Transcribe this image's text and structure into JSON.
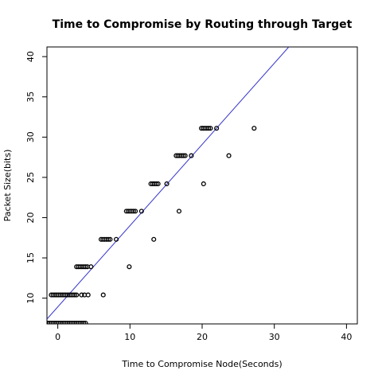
{
  "chart_data": {
    "type": "scatter",
    "title": "Time to Compromise by Routing through Target",
    "xlabel": "Time to Compromise Node(Seconds)",
    "ylabel": "Packet Size(bits)",
    "xlim": [
      -1.5,
      41.5
    ],
    "ylim": [
      6.8,
      41.2
    ],
    "xticks": [
      "0",
      "10",
      "20",
      "30",
      "40"
    ],
    "xtick_values": [
      0,
      10,
      20,
      30,
      40
    ],
    "yticks": [
      "10",
      "15",
      "20",
      "25",
      "30",
      "35",
      "40"
    ],
    "ytick_values": [
      10,
      15,
      20,
      25,
      30,
      35,
      40
    ],
    "grid": false,
    "point_color": "#000000",
    "line_color": "#3333cc",
    "series": [
      {
        "style": "points",
        "clusters": [
          {
            "y": 6.9,
            "x_from": -1.4,
            "x_to": 4.0,
            "step": 0.25
          },
          {
            "y": 10.4,
            "x_from": -0.9,
            "x_to": 2.6,
            "step": 0.25
          },
          {
            "y": 13.9,
            "x_from": 2.6,
            "x_to": 4.1,
            "step": 0.25
          },
          {
            "y": 17.3,
            "x_from": 6.0,
            "x_to": 7.4,
            "step": 0.25
          },
          {
            "y": 20.8,
            "x_from": 9.5,
            "x_to": 10.9,
            "step": 0.25
          },
          {
            "y": 24.2,
            "x_from": 12.9,
            "x_to": 14.1,
            "step": 0.25
          },
          {
            "y": 27.7,
            "x_from": 16.4,
            "x_to": 17.8,
            "step": 0.25
          },
          {
            "y": 31.1,
            "x_from": 19.9,
            "x_to": 21.2,
            "step": 0.25
          }
        ],
        "points": [
          {
            "x": 3.3,
            "y": 10.4
          },
          {
            "x": 3.7,
            "y": 10.4
          },
          {
            "x": 4.2,
            "y": 10.4
          },
          {
            "x": 6.3,
            "y": 10.4
          },
          {
            "x": 4.6,
            "y": 13.9
          },
          {
            "x": 9.9,
            "y": 13.9
          },
          {
            "x": 8.1,
            "y": 17.3
          },
          {
            "x": 13.3,
            "y": 17.3
          },
          {
            "x": 11.6,
            "y": 20.8
          },
          {
            "x": 16.8,
            "y": 20.8
          },
          {
            "x": 15.1,
            "y": 24.2
          },
          {
            "x": 20.2,
            "y": 24.2
          },
          {
            "x": 18.5,
            "y": 27.7
          },
          {
            "x": 23.7,
            "y": 27.7
          },
          {
            "x": 22.0,
            "y": 31.1
          },
          {
            "x": 27.2,
            "y": 31.1
          }
        ]
      },
      {
        "style": "line",
        "x": [
          -1.5,
          32
        ],
        "y": [
          7.4,
          41.2
        ]
      }
    ]
  }
}
